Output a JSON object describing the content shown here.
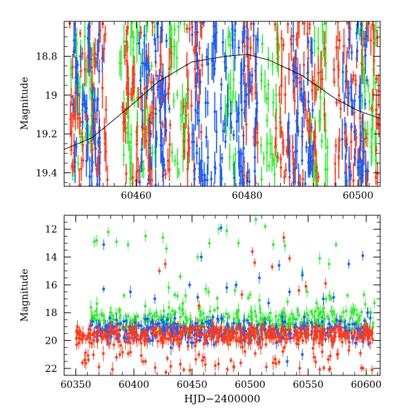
{
  "chart_data": [
    {
      "type": "scatter",
      "panel": "top",
      "title": "",
      "xlabel": "",
      "ylabel": "Magnitude",
      "xlim": [
        60447,
        60504
      ],
      "ylim": [
        19.47,
        18.62
      ],
      "y_inverted": true,
      "xticks": [
        60460,
        60480,
        60500
      ],
      "yticks": [
        18.8,
        19,
        19.2,
        19.4
      ],
      "ytick_labels": [
        "18.8",
        "19",
        "19.2",
        "19.4"
      ],
      "xtick_labels": [
        "60460",
        "60480",
        "60500"
      ],
      "grid": false,
      "legend": "none",
      "bands": [
        {
          "name": "green",
          "color": "#33ee33",
          "x_ranges": [
            [
              60448.2,
              60452.5
            ],
            [
              60457,
              60463.5
            ],
            [
              60466,
              60469.5
            ],
            [
              60476,
              60478
            ],
            [
              60482.5,
              60486
            ],
            [
              60491,
              60494.5
            ],
            [
              60500,
              60503.5
            ]
          ]
        },
        {
          "name": "red",
          "color": "#ff3a1a",
          "x_ranges": [
            [
              60448,
              60455
            ],
            [
              60457.5,
              60466.5
            ],
            [
              60468.5,
              60472
            ],
            [
              60479,
              60482
            ],
            [
              60485,
              60494
            ],
            [
              60495.5,
              60503.8
            ]
          ]
        },
        {
          "name": "blue",
          "color": "#1a5cff",
          "x_ranges": [
            [
              60448.5,
              60454
            ],
            [
              60460.5,
              60466
            ],
            [
              60470,
              60482
            ],
            [
              60487,
              60492
            ],
            [
              60497,
              60502
            ]
          ]
        }
      ],
      "model_curve": [
        [
          60447,
          19.28
        ],
        [
          60452,
          19.22
        ],
        [
          60458,
          19.08
        ],
        [
          60464,
          18.93
        ],
        [
          60470,
          18.83
        ],
        [
          60476,
          18.8
        ],
        [
          60480,
          18.79
        ],
        [
          60484,
          18.82
        ],
        [
          60490,
          18.9
        ],
        [
          60496,
          19.02
        ],
        [
          60500,
          19.08
        ],
        [
          60504,
          19.12
        ]
      ]
    },
    {
      "type": "scatter",
      "panel": "bottom",
      "title": "",
      "xlabel": "HJD−2400000",
      "ylabel": "Magnitude",
      "xlim": [
        60340,
        60612
      ],
      "ylim": [
        22.5,
        11
      ],
      "y_inverted": true,
      "xticks": [
        60350,
        60400,
        60450,
        60500,
        60550,
        60600
      ],
      "xtick_labels": [
        "60350",
        "60400",
        "60450",
        "60500",
        "60550",
        "60600"
      ],
      "yticks": [
        12,
        14,
        16,
        18,
        20,
        22
      ],
      "ytick_labels": [
        "12",
        "14",
        "16",
        "18",
        "20",
        "22"
      ],
      "grid": false,
      "legend": "none",
      "series": [
        {
          "name": "green",
          "color": "#33ee33",
          "x_range": [
            60362,
            60606
          ],
          "mag_range": [
            17.6,
            19.6
          ],
          "outliers": [
            [
              60366,
              12.9
            ],
            [
              60368,
              12.8
            ],
            [
              60378,
              12.2
            ],
            [
              60385,
              12.9
            ],
            [
              60395,
              13.1
            ],
            [
              60410,
              12.5
            ],
            [
              60425,
              12.6
            ],
            [
              60428,
              13.4
            ],
            [
              60440,
              15.4
            ],
            [
              60455,
              14.0
            ],
            [
              60465,
              13.0
            ],
            [
              60473,
              12.0
            ],
            [
              60480,
              12.1
            ],
            [
              60490,
              13.0
            ],
            [
              60505,
              11.3
            ],
            [
              60513,
              11.8
            ],
            [
              60520,
              13.1
            ],
            [
              60530,
              13.2
            ],
            [
              60545,
              15.1
            ],
            [
              60560,
              14.1
            ],
            [
              60568,
              14.5
            ],
            [
              60574,
              13.1
            ],
            [
              60598,
              16.7
            ],
            [
              60607,
              17.3
            ],
            [
              60430,
              16.2
            ],
            [
              60462,
              16.3
            ],
            [
              60487,
              16.4
            ],
            [
              60500,
              16.7
            ]
          ]
        },
        {
          "name": "blue",
          "color": "#1a5cff",
          "x_range": [
            60362,
            60605
          ],
          "mag_range": [
            18.4,
            20.2
          ],
          "outliers": [
            [
              60374,
              13.1
            ],
            [
              60374,
              16.3
            ],
            [
              60397,
              16.5
            ],
            [
              60418,
              17.0
            ],
            [
              60448,
              16.0
            ],
            [
              60455,
              16.9
            ],
            [
              60458,
              14.0
            ],
            [
              60475,
              11.9
            ],
            [
              60480,
              16.2
            ],
            [
              60488,
              16.0
            ],
            [
              60508,
              15.5
            ],
            [
              60516,
              17.3
            ],
            [
              60525,
              14.6
            ],
            [
              60534,
              16.5
            ],
            [
              60545,
              15.3
            ],
            [
              60563,
              17.0
            ],
            [
              60572,
              16.9
            ],
            [
              60585,
              14.5
            ],
            [
              60597,
              13.9
            ],
            [
              60601,
              18.0
            ],
            [
              60532,
              21.5
            ],
            [
              60545,
              21.0
            ]
          ]
        },
        {
          "name": "red",
          "color": "#ff3a1a",
          "x_range": [
            60350,
            60606
          ],
          "mag_range": [
            18.9,
            20.3
          ],
          "outliers": [
            [
              60422,
              15.0
            ],
            [
              60427,
              14.5
            ],
            [
              60456,
              17.5
            ],
            [
              60493,
              16.7
            ],
            [
              60502,
              13.6
            ],
            [
              60504,
              14.4
            ],
            [
              60519,
              14.7
            ],
            [
              60529,
              12.6
            ],
            [
              60534,
              14.1
            ],
            [
              60542,
              16.4
            ],
            [
              60548,
              16.1
            ],
            [
              60565,
              15.9
            ],
            [
              60585,
              20.7
            ],
            [
              60595,
              20.9
            ],
            [
              60605,
              22.1
            ],
            [
              60385,
              21.2
            ],
            [
              60410,
              21.5
            ],
            [
              60440,
              21.7
            ],
            [
              60456,
              21.0
            ],
            [
              60470,
              21.8
            ],
            [
              60492,
              21.6
            ],
            [
              60514,
              21.9
            ],
            [
              60555,
              21.2
            ],
            [
              60575,
              21.0
            ],
            [
              60370,
              21.9
            ]
          ]
        }
      ]
    }
  ]
}
